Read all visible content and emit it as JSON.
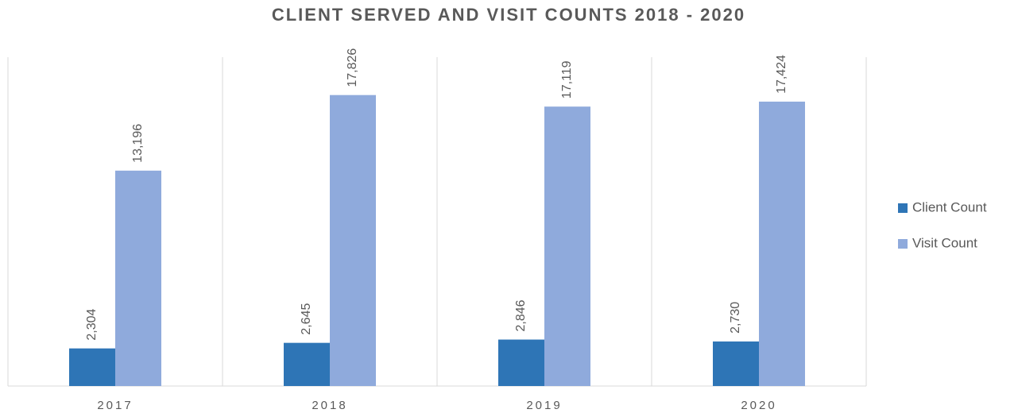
{
  "chart_data": {
    "type": "bar",
    "title": "CLIENT SERVED AND VISIT COUNTS 2018 - 2020",
    "categories": [
      "2017",
      "2018",
      "2019",
      "2020"
    ],
    "series": [
      {
        "name": "Client Count",
        "color": "#2e75b6",
        "values": [
          2304,
          2645,
          2846,
          2730
        ],
        "value_labels": [
          "2,304",
          "2,645",
          "2,846",
          "2,730"
        ]
      },
      {
        "name": "Visit Count",
        "color": "#8faadc",
        "values": [
          13196,
          17826,
          17119,
          17424
        ],
        "value_labels": [
          "13,196",
          "17,826",
          "17,119",
          "17,424"
        ]
      }
    ],
    "ylim": [
      0,
      20000
    ],
    "legend": "right"
  }
}
